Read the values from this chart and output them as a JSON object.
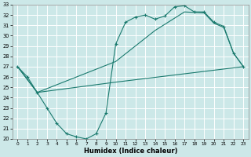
{
  "xlabel": "Humidex (Indice chaleur)",
  "bg_color": "#cce8e8",
  "grid_color": "#ffffff",
  "line_color": "#1a7a6e",
  "xlim": [
    -0.5,
    23.5
  ],
  "ylim": [
    20,
    33
  ],
  "xticks": [
    0,
    1,
    2,
    3,
    4,
    5,
    6,
    7,
    8,
    9,
    10,
    11,
    12,
    13,
    14,
    15,
    16,
    17,
    18,
    19,
    20,
    21,
    22,
    23
  ],
  "yticks": [
    20,
    21,
    22,
    23,
    24,
    25,
    26,
    27,
    28,
    29,
    30,
    31,
    32,
    33
  ],
  "line1_x": [
    0,
    1,
    2,
    3,
    4,
    5,
    6,
    7,
    8,
    9,
    10,
    11,
    12,
    13,
    14,
    15,
    16,
    17,
    18,
    19,
    20,
    21,
    22,
    23
  ],
  "line1_y": [
    27.0,
    26.0,
    24.5,
    23.0,
    21.5,
    20.5,
    20.2,
    20.0,
    20.5,
    22.5,
    29.2,
    31.3,
    31.8,
    32.0,
    31.6,
    31.9,
    32.8,
    32.9,
    32.3,
    32.3,
    31.3,
    30.9,
    28.3,
    27.0
  ],
  "line2_x": [
    0,
    2,
    10,
    23
  ],
  "line2_y": [
    27.0,
    24.5,
    25.5,
    27.0
  ],
  "line3_x": [
    0,
    2,
    10,
    14,
    17,
    19,
    20,
    21,
    22,
    23
  ],
  "line3_y": [
    27.0,
    24.5,
    27.5,
    30.5,
    32.3,
    32.2,
    31.2,
    30.8,
    28.3,
    27.0
  ]
}
